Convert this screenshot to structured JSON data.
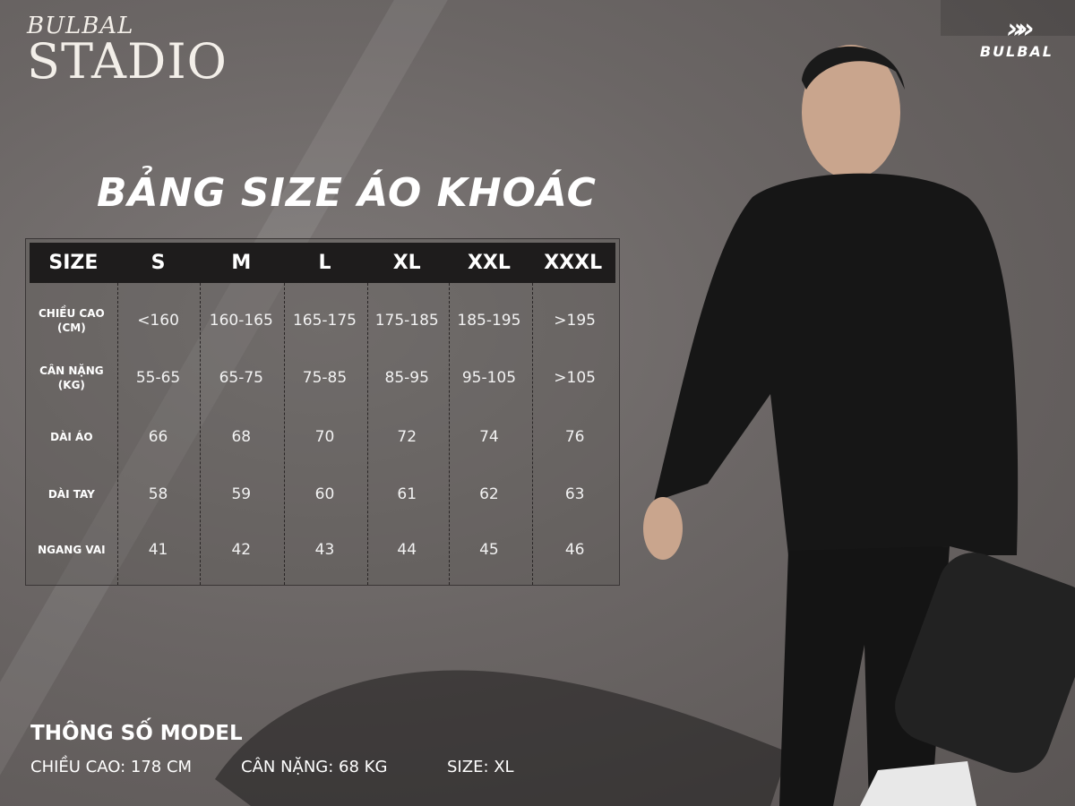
{
  "brand": {
    "line1": "BULBAL",
    "line2": "STADIO"
  },
  "logo": {
    "mark": "»",
    "text": "BULBAL"
  },
  "title": "BẢNG SIZE ÁO KHOÁC",
  "table": {
    "headers": [
      "SIZE",
      "S",
      "M",
      "L",
      "XL",
      "XXL",
      "XXXL"
    ],
    "rows": [
      {
        "label": "CHIỀU CAO (CM)",
        "values": [
          "<160",
          "160-165",
          "165-175",
          "175-185",
          "185-195",
          ">195"
        ]
      },
      {
        "label": "CÂN NẶNG (KG)",
        "values": [
          "55-65",
          "65-75",
          "75-85",
          "85-95",
          "95-105",
          ">105"
        ]
      },
      {
        "label": "DÀI ÁO",
        "values": [
          "66",
          "68",
          "70",
          "72",
          "74",
          "76"
        ]
      },
      {
        "label": "DÀI TAY",
        "values": [
          "58",
          "59",
          "60",
          "61",
          "62",
          "63"
        ]
      },
      {
        "label": "NGANG VAI",
        "values": [
          "41",
          "42",
          "43",
          "44",
          "45",
          "46"
        ]
      }
    ]
  },
  "model": {
    "heading": "THÔNG SỐ MODEL",
    "height": "CHIỀU CAO: 178 CM",
    "weight": "CÂN NẶNG: 68 KG",
    "size": "SIZE: XL"
  },
  "colors": {
    "header_bg": "#1e1c1c",
    "background": "#6b6665"
  }
}
